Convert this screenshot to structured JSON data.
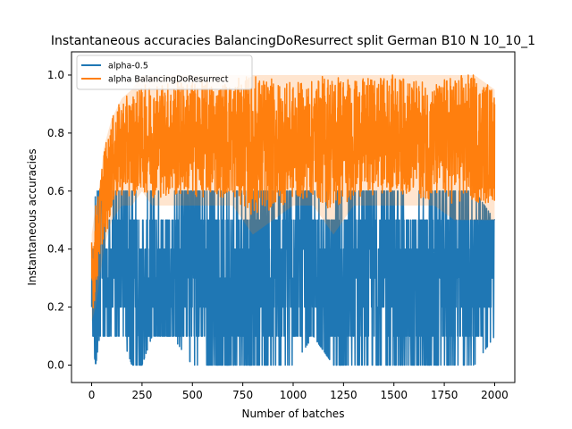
{
  "chart_data": {
    "type": "line",
    "title": "Instantaneous accuracies BalancingDoResurrect split German B10 N 10_10_1",
    "xlabel": "Number of batches",
    "ylabel": "Instantaneous accuracies",
    "xlim": [
      -100,
      2100
    ],
    "ylim": [
      -0.06,
      1.08
    ],
    "xticks": [
      0,
      250,
      500,
      750,
      1000,
      1250,
      1500,
      1750,
      2000
    ],
    "yticks": [
      0.0,
      0.2,
      0.4,
      0.6,
      0.8,
      1.0
    ],
    "xtick_labels": [
      "0",
      "250",
      "500",
      "750",
      "1000",
      "1250",
      "1500",
      "1750",
      "2000"
    ],
    "ytick_labels": [
      "0.0",
      "0.2",
      "0.4",
      "0.6",
      "0.8",
      "1.0"
    ],
    "grid": false,
    "legend_position": "top-left",
    "series": [
      {
        "name": "alpha-0.5",
        "color": "#1f77b4",
        "x": [
          0,
          20,
          40,
          60,
          80,
          100,
          150,
          200,
          250,
          300,
          400,
          500,
          600,
          700,
          800,
          900,
          1000,
          1100,
          1200,
          1300,
          1400,
          1500,
          1600,
          1700,
          1800,
          1900,
          2000
        ],
        "values": [
          0.3,
          0.1,
          0.6,
          0.4,
          0.2,
          0.3,
          0.4,
          0.3,
          0.2,
          0.3,
          0.3,
          0.4,
          0.3,
          0.2,
          0.3,
          0.3,
          0.4,
          0.3,
          0.2,
          0.3,
          0.3,
          0.3,
          0.2,
          0.3,
          0.3,
          0.3,
          0.4
        ],
        "band_min": [
          0.1,
          0.0,
          0.1,
          0.1,
          0.1,
          0.1,
          0.1,
          0.0,
          0.0,
          0.1,
          0.1,
          0.0,
          0.0,
          0.0,
          0.0,
          0.0,
          0.0,
          0.1,
          0.0,
          0.0,
          0.0,
          0.0,
          0.0,
          0.0,
          0.0,
          0.0,
          0.1
        ],
        "band_max": [
          0.4,
          0.6,
          0.6,
          0.6,
          0.6,
          0.6,
          0.6,
          0.6,
          0.6,
          0.6,
          0.6,
          0.6,
          0.6,
          0.6,
          0.6,
          0.6,
          0.6,
          0.6,
          0.6,
          0.6,
          0.6,
          0.6,
          0.6,
          0.6,
          0.6,
          0.6,
          0.5
        ]
      },
      {
        "name": "alpha BalancingDoResurrect",
        "color": "#ff7f0e",
        "x": [
          0,
          20,
          40,
          60,
          80,
          100,
          150,
          200,
          250,
          300,
          400,
          500,
          600,
          700,
          800,
          900,
          1000,
          1100,
          1200,
          1300,
          1400,
          1500,
          1600,
          1700,
          1800,
          1900,
          2000
        ],
        "values": [
          0.3,
          0.4,
          0.5,
          0.6,
          0.62,
          0.7,
          0.75,
          0.76,
          0.78,
          0.78,
          0.78,
          0.78,
          0.78,
          0.78,
          0.76,
          0.76,
          0.77,
          0.78,
          0.77,
          0.78,
          0.79,
          0.8,
          0.78,
          0.77,
          0.78,
          0.78,
          0.76
        ],
        "band_min": [
          0.15,
          0.2,
          0.3,
          0.4,
          0.45,
          0.5,
          0.55,
          0.55,
          0.6,
          0.55,
          0.55,
          0.55,
          0.55,
          0.55,
          0.45,
          0.5,
          0.55,
          0.55,
          0.45,
          0.55,
          0.55,
          0.55,
          0.55,
          0.55,
          0.5,
          0.5,
          0.5
        ],
        "band_max": [
          0.45,
          0.55,
          0.6,
          0.75,
          0.8,
          0.85,
          0.92,
          0.95,
          1.0,
          1.0,
          1.0,
          1.0,
          1.0,
          1.0,
          1.0,
          1.0,
          1.0,
          1.0,
          1.0,
          1.0,
          1.0,
          1.0,
          1.0,
          1.0,
          1.0,
          1.0,
          0.95
        ]
      }
    ]
  }
}
